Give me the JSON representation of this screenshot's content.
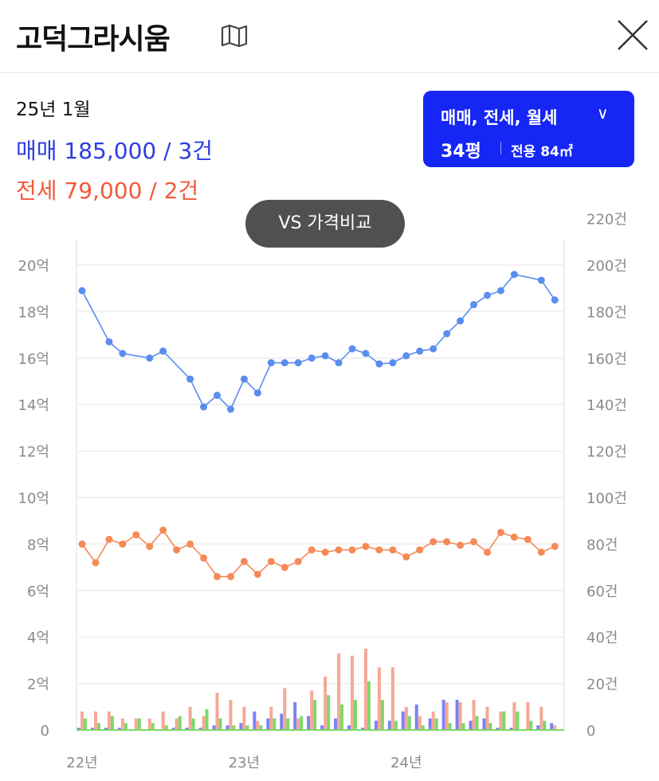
{
  "header": {
    "title": "고덕그라시움",
    "map_icon": "map-icon",
    "close_icon": "close-icon"
  },
  "summary": {
    "date": "25년 1월",
    "sale": "매매 185,000 / 3건",
    "jeonse": "전세 79,000 / 2건"
  },
  "filter": {
    "types": "매매, 전세, 월세",
    "size": "34평",
    "area": "전용 84㎡"
  },
  "compare_button": "VS 가격비교",
  "colors": {
    "sale_line": "#5b8def",
    "jeonse_line": "#f58a58",
    "sale_bar": "#7b83f2",
    "jeonse_bar": "#f7a896",
    "wolse_bar": "#7fd86a",
    "accent": "#1526f5"
  },
  "chart_data": {
    "type": "line+bar",
    "x_ticks": [
      "22년",
      "23년",
      "24년"
    ],
    "x_months": "2022-01..2024-12",
    "y_left": {
      "ticks": [
        "0",
        "2억",
        "4억",
        "6억",
        "8억",
        "10억",
        "12억",
        "14억",
        "16억",
        "18억",
        "20억"
      ],
      "range": [
        0,
        20
      ],
      "unit": "억"
    },
    "y_right": {
      "ticks": [
        "0",
        "20건",
        "40건",
        "60건",
        "80건",
        "100건",
        "120건",
        "140건",
        "160건",
        "180건",
        "200건",
        "220건"
      ],
      "range": [
        0,
        220
      ],
      "unit": "건"
    },
    "grid": true,
    "lines": [
      {
        "key": "sale",
        "points": [
          [
            0,
            18.9
          ],
          [
            2,
            16.7
          ],
          [
            3,
            16.2
          ],
          [
            5,
            16.0
          ],
          [
            6,
            16.3
          ],
          [
            8,
            15.1
          ],
          [
            9,
            13.9
          ],
          [
            10,
            14.4
          ],
          [
            11,
            13.8
          ],
          [
            12,
            15.1
          ],
          [
            13,
            14.5
          ],
          [
            14,
            15.8
          ],
          [
            15,
            15.8
          ],
          [
            16,
            15.8
          ],
          [
            17,
            16.0
          ],
          [
            18,
            16.1
          ],
          [
            19,
            15.8
          ],
          [
            20,
            16.4
          ],
          [
            21,
            16.2
          ],
          [
            22,
            15.75
          ],
          [
            23,
            15.8
          ],
          [
            24,
            16.1
          ],
          [
            25,
            16.3
          ],
          [
            26,
            16.4
          ],
          [
            27,
            17.05
          ],
          [
            28,
            17.6
          ],
          [
            29,
            18.3
          ],
          [
            30,
            18.7
          ],
          [
            31,
            18.9
          ],
          [
            32,
            19.6
          ],
          [
            34,
            19.35
          ],
          [
            35,
            18.5
          ]
        ]
      },
      {
        "key": "jeonse",
        "points": [
          [
            0,
            8.0
          ],
          [
            1,
            7.2
          ],
          [
            2,
            8.2
          ],
          [
            3,
            8.0
          ],
          [
            4,
            8.4
          ],
          [
            5,
            7.9
          ],
          [
            6,
            8.6
          ],
          [
            7,
            7.75
          ],
          [
            8,
            8.0
          ],
          [
            9,
            7.4
          ],
          [
            10,
            6.6
          ],
          [
            11,
            6.6
          ],
          [
            12,
            7.25
          ],
          [
            13,
            6.7
          ],
          [
            14,
            7.25
          ],
          [
            15,
            7.0
          ],
          [
            16,
            7.25
          ],
          [
            17,
            7.75
          ],
          [
            18,
            7.65
          ],
          [
            19,
            7.75
          ],
          [
            20,
            7.75
          ],
          [
            21,
            7.9
          ],
          [
            22,
            7.75
          ],
          [
            23,
            7.75
          ],
          [
            24,
            7.45
          ],
          [
            25,
            7.75
          ],
          [
            26,
            8.1
          ],
          [
            27,
            8.1
          ],
          [
            28,
            7.95
          ],
          [
            29,
            8.1
          ],
          [
            30,
            7.65
          ],
          [
            31,
            8.5
          ],
          [
            32,
            8.3
          ],
          [
            33,
            8.2
          ],
          [
            34,
            7.65
          ],
          [
            35,
            7.9
          ]
        ]
      }
    ],
    "bars": [
      {
        "key": "sale",
        "values": [
          1,
          1,
          1,
          1,
          0,
          0,
          0,
          1,
          1,
          1,
          2,
          2,
          3,
          8,
          5,
          7,
          12,
          6,
          2,
          5,
          2,
          1,
          4,
          4,
          8,
          11,
          5,
          13,
          13,
          4,
          5,
          1,
          1,
          0,
          2,
          3
        ]
      },
      {
        "key": "jeonse",
        "values": [
          8,
          8,
          8,
          5,
          5,
          5,
          8,
          5,
          10,
          6,
          16,
          13,
          10,
          4,
          10,
          18,
          5,
          17,
          23,
          33,
          32,
          35,
          27,
          27,
          10,
          6,
          8,
          12,
          12,
          13,
          10,
          8,
          12,
          12,
          10,
          2
        ]
      },
      {
        "key": "wolse",
        "values": [
          5,
          3,
          6,
          3,
          5,
          3,
          2,
          6,
          5,
          9,
          5,
          2,
          2,
          2,
          5,
          5,
          6,
          13,
          15,
          11,
          13,
          21,
          13,
          4,
          6,
          2,
          5,
          3,
          3,
          6,
          3,
          8,
          8,
          4,
          4,
          0
        ]
      }
    ]
  }
}
